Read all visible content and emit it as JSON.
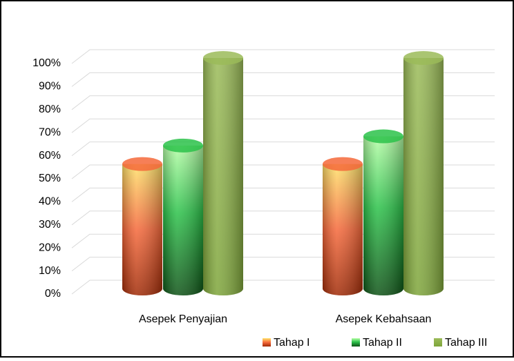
{
  "chart_data": {
    "type": "bar3d",
    "categories": [
      "Asepek Penyajian",
      "Asepek Kebahsaan"
    ],
    "series": [
      {
        "name": "Tahap I",
        "color": "#f5683a",
        "values": [
          54,
          54
        ]
      },
      {
        "name": "Tahap II",
        "color": "#2cc24a",
        "values": [
          62,
          66
        ]
      },
      {
        "name": "Tahap III",
        "color": "#9bbb59",
        "values": [
          100,
          100
        ]
      }
    ],
    "ylim": [
      0,
      100
    ],
    "yticks": [
      {
        "value": 0,
        "label": "0%"
      },
      {
        "value": 10,
        "label": "10%"
      },
      {
        "value": 20,
        "label": "20%"
      },
      {
        "value": 30,
        "label": "30%"
      },
      {
        "value": 40,
        "label": "40%"
      },
      {
        "value": 50,
        "label": "50%"
      },
      {
        "value": 60,
        "label": "60%"
      },
      {
        "value": 70,
        "label": "70%"
      },
      {
        "value": 80,
        "label": "80%"
      },
      {
        "value": 90,
        "label": "90%"
      },
      {
        "value": 100,
        "label": "100%"
      }
    ],
    "grid": true,
    "legend": "bottom-right"
  }
}
